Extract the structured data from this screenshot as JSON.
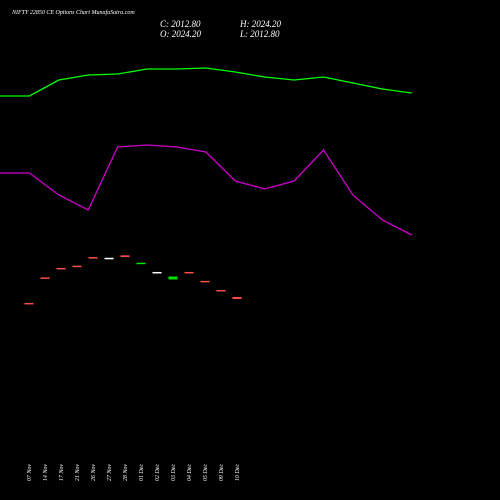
{
  "chart_data": [
    {
      "type": "candlestick",
      "title": "NIFTY 22850 CE Options Chart MunafaSutra.com",
      "ohlc_labels": [
        "C: 2012.80",
        "H: 2024.20",
        "O: 2024.20",
        "L: 2012.80"
      ],
      "categories": [
        "07 Nov",
        "14 Nov",
        "17 Nov",
        "21 Nov",
        "26 Nov",
        "27 Nov",
        "28 Nov",
        "01 Dec",
        "02 Dec",
        "03 Dec",
        "04 Dec",
        "05 Dec",
        "09 Dec",
        "10 Dec"
      ],
      "open": [
        1990,
        2136,
        2190,
        2203,
        2252,
        2248,
        2262,
        2218,
        2167,
        2124,
        2167,
        2116,
        2064,
        2024.2
      ],
      "close": [
        1988,
        2134,
        2187,
        2198,
        2250,
        2248,
        2252,
        2220,
        2167,
        2141,
        2163,
        2112,
        2061,
        2012.8
      ],
      "up_color": "#00e600",
      "down_color": "#ff4d4d",
      "flat_color": "#ffffff",
      "ylim": [
        864,
        3721
      ]
    },
    {
      "type": "line",
      "x": [
        0,
        1,
        2,
        3,
        4,
        5,
        6,
        7,
        8,
        9,
        10,
        11,
        12,
        13,
        14
      ],
      "xlim": [
        0,
        17
      ],
      "ylim": [
        0,
        100
      ],
      "series": [
        {
          "color": "#00ff00",
          "values": [
            80.8,
            80.8,
            84,
            85,
            85.2,
            86.2,
            86.2,
            86.4,
            85.6,
            84.6,
            84,
            84.6,
            83.4,
            82.2,
            81.4
          ]
        },
        {
          "color": "#cc00cc",
          "values": [
            65.4,
            65.4,
            61,
            58,
            70.6,
            71,
            70.6,
            69.6,
            63.8,
            62.2,
            63.8,
            70,
            61,
            56,
            53
          ]
        }
      ]
    }
  ]
}
